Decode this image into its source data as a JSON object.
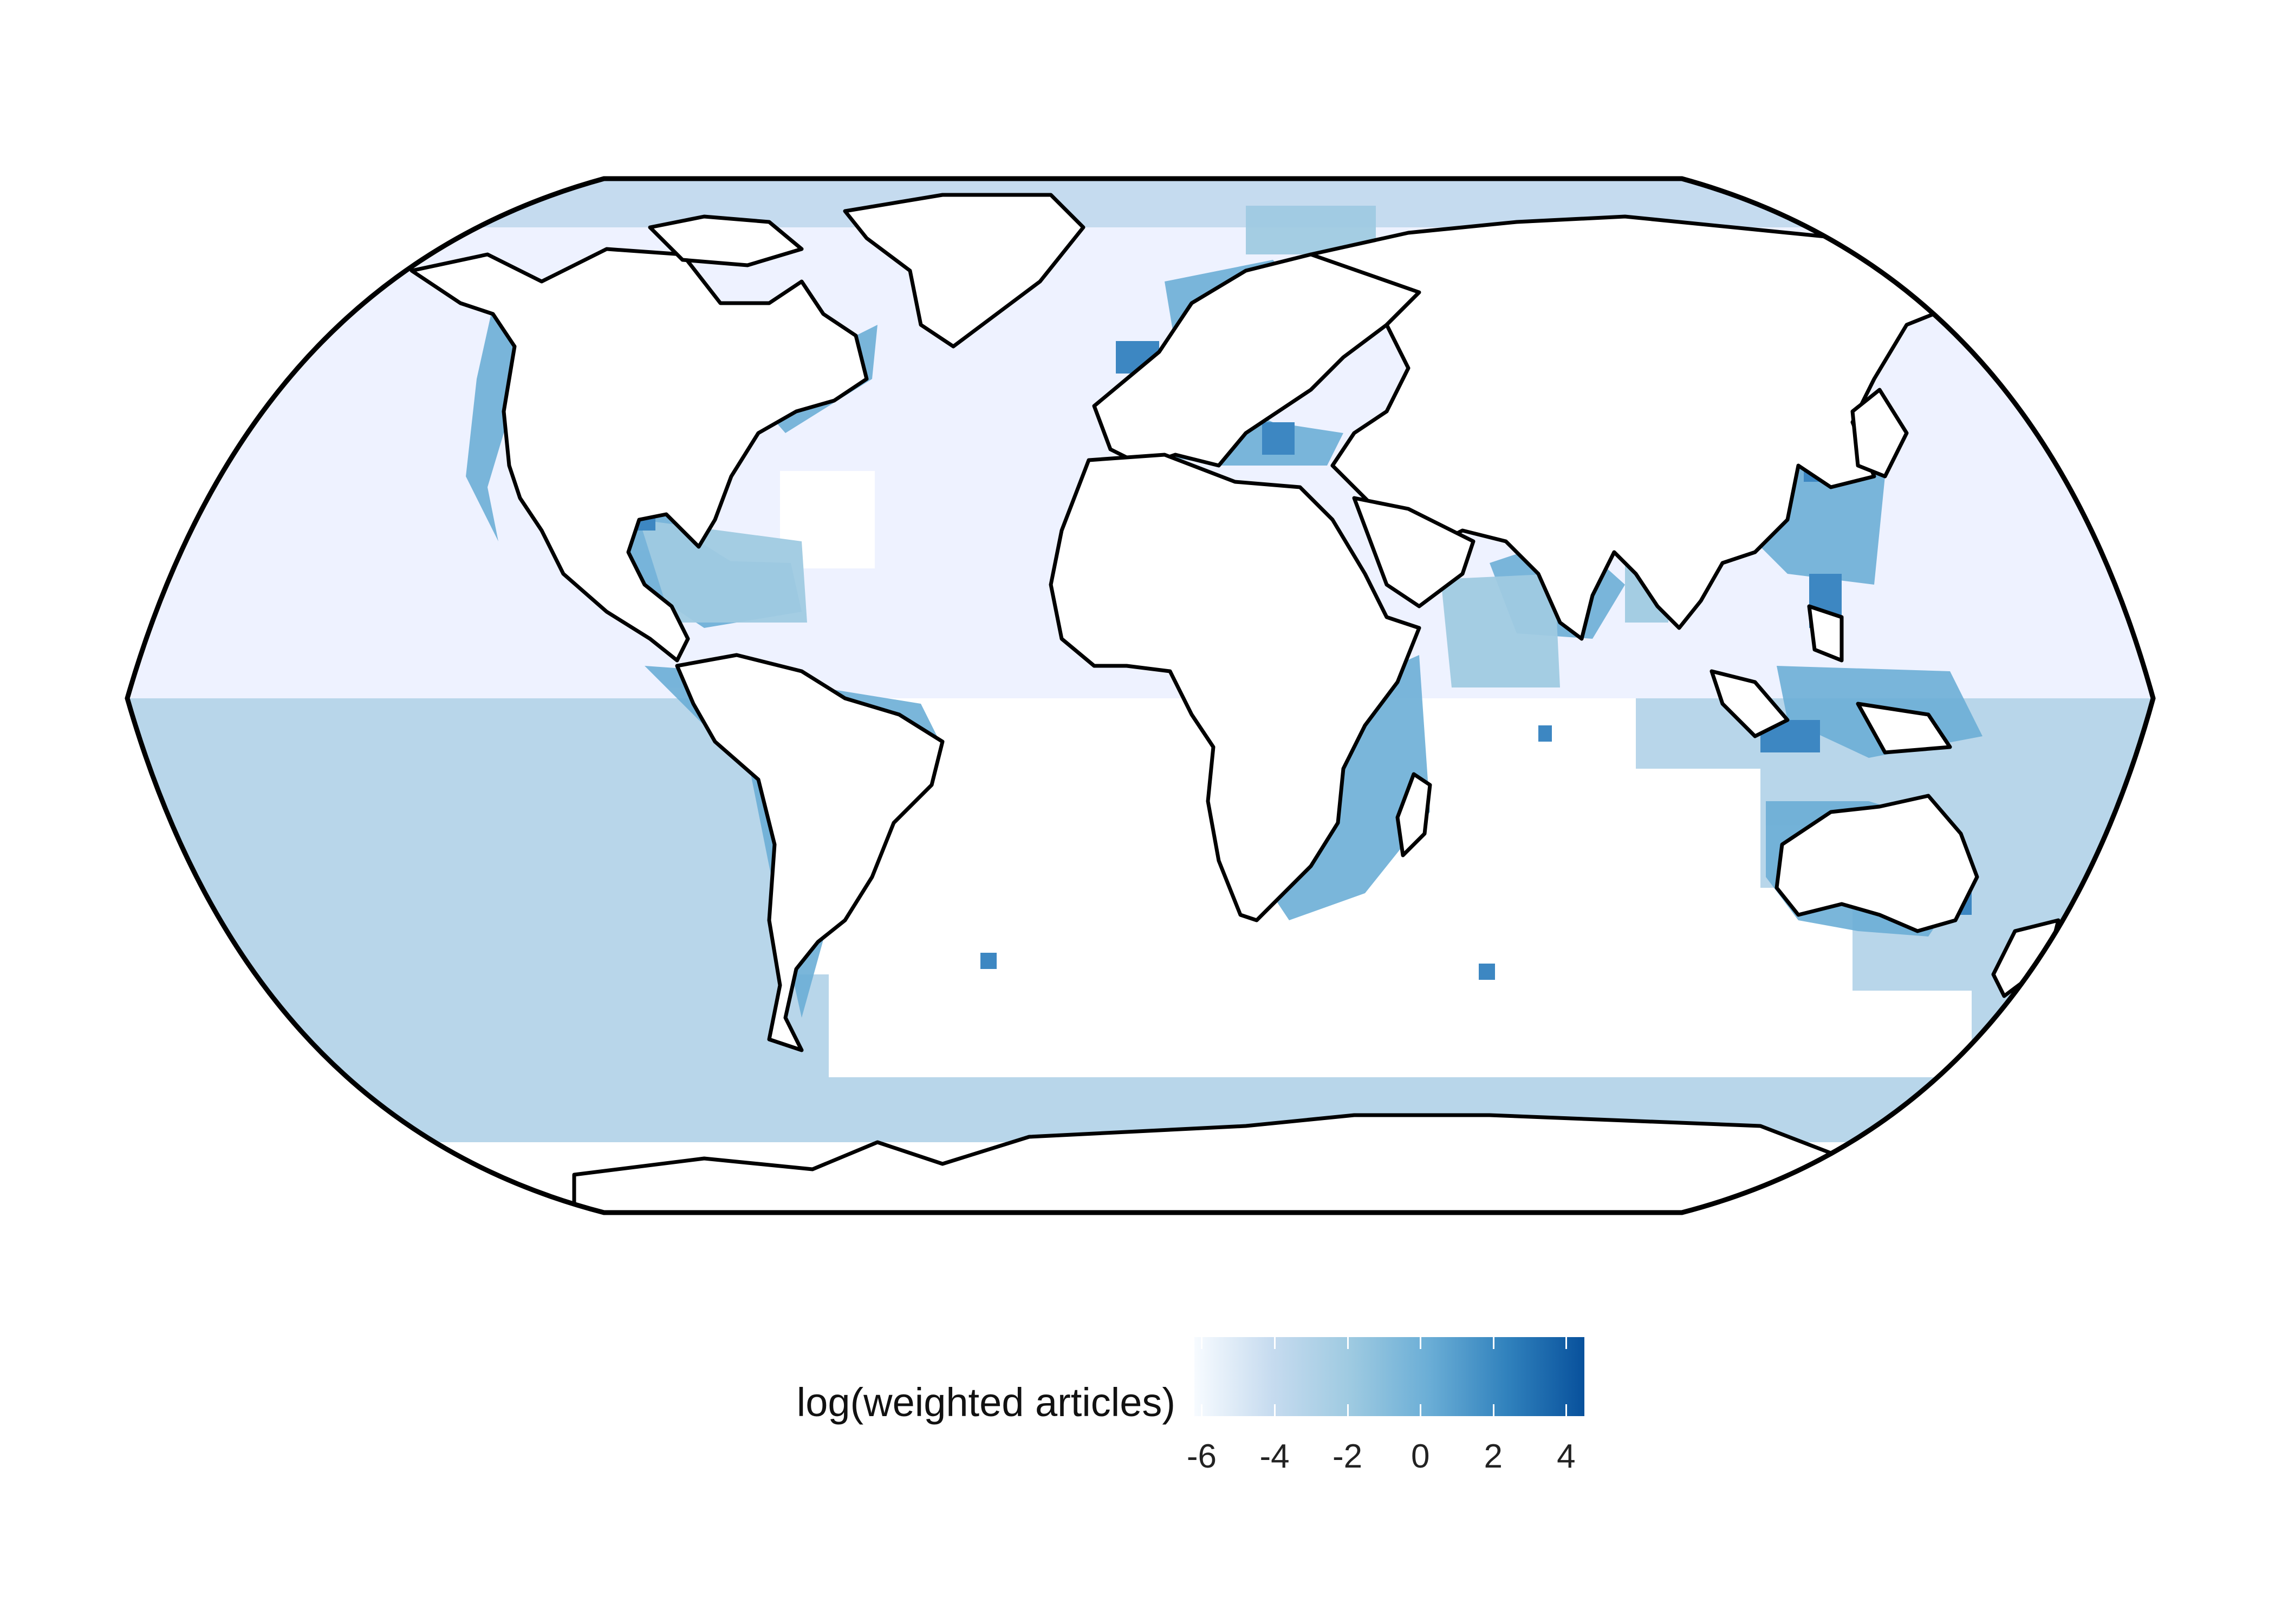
{
  "map": {
    "projection": "Robinson",
    "colors": {
      "frame": "#000000",
      "coast": "#000000",
      "land": "#ffffff",
      "ocean_north": "#eef2ff",
      "ocean_south": "#b8d6ea",
      "arctic_band": "#c5dbef",
      "coastal_low": "#9fcae1",
      "coastal_mid": "#6baed6",
      "coastal_high": "#3d87c2",
      "hotspot": "#1f65ad"
    }
  },
  "legend": {
    "title": "log(weighted articles)",
    "min": -6.2,
    "max": 4.5,
    "ticks": [
      "-6",
      "-4",
      "-2",
      "0",
      "2",
      "4"
    ],
    "tick_values": [
      -6,
      -4,
      -2,
      0,
      2,
      4
    ],
    "colors": [
      "#f7fbff",
      "#c6dbef",
      "#9ecae1",
      "#6baed6",
      "#3182bd",
      "#08519c"
    ]
  }
}
